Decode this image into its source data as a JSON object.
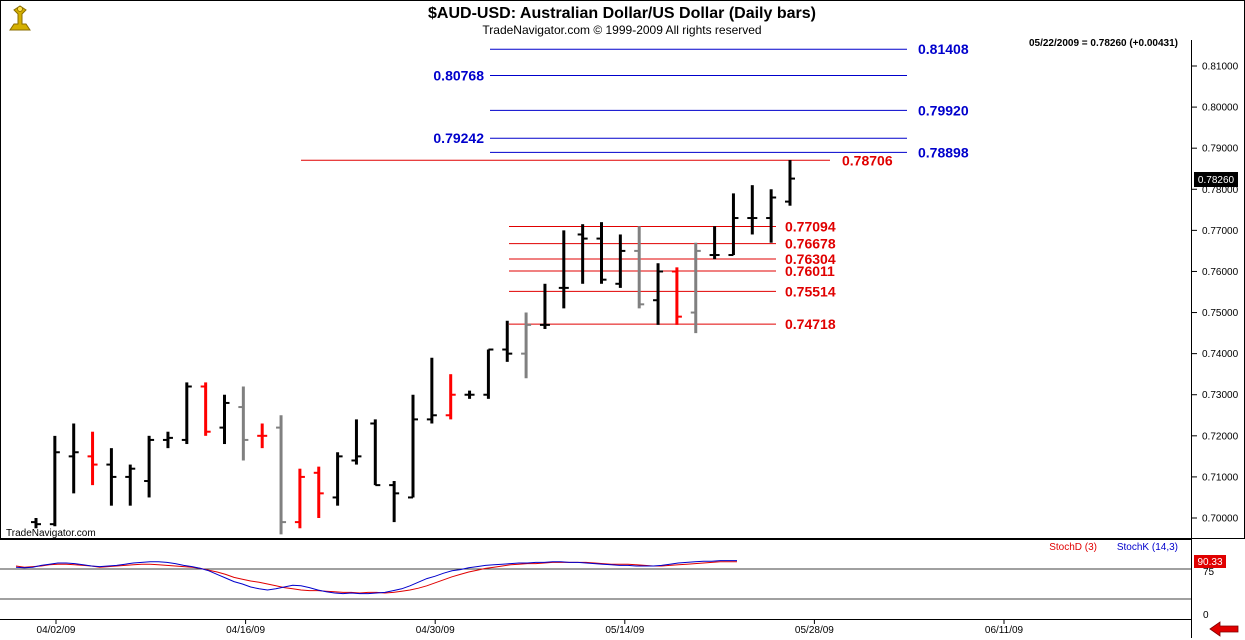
{
  "chart_data": {
    "type": "ohlc",
    "title": "$AUD-USD:  Australian Dollar/US Dollar  (Daily bars)",
    "subtitle": "TradeNavigator.com © 1999-2009 All rights reserved",
    "status_text": "05/22/2009 = 0.78260 (+0.00431)",
    "watermark": "TradeNavigator.com",
    "last_price_label": "0.78260",
    "ylim": [
      0.6955,
      0.8175
    ],
    "y_ticks": [
      "0.70000",
      "0.71000",
      "0.72000",
      "0.73000",
      "0.74000",
      "0.75000",
      "0.76000",
      "0.77000",
      "0.78000",
      "0.79000",
      "0.80000",
      "0.81000"
    ],
    "x_tick_labels": [
      "04/02/09",
      "04/16/09",
      "04/30/09",
      "05/14/09",
      "05/28/09",
      "06/11/09"
    ],
    "colors": {
      "up": "#000000",
      "down": "#ff0000",
      "neutral": "#808080",
      "blue_level": "#0000cc",
      "red_level": "#e00000"
    },
    "bars": [
      {
        "o": 0.699,
        "h": 0.7,
        "l": 0.6975,
        "c": 0.6985,
        "color": "up"
      },
      {
        "o": 0.6985,
        "h": 0.72,
        "l": 0.698,
        "c": 0.716,
        "color": "up"
      },
      {
        "o": 0.715,
        "h": 0.723,
        "l": 0.706,
        "c": 0.716,
        "color": "up"
      },
      {
        "o": 0.715,
        "h": 0.721,
        "l": 0.708,
        "c": 0.713,
        "color": "down"
      },
      {
        "o": 0.713,
        "h": 0.717,
        "l": 0.703,
        "c": 0.71,
        "color": "up"
      },
      {
        "o": 0.71,
        "h": 0.713,
        "l": 0.703,
        "c": 0.712,
        "color": "up"
      },
      {
        "o": 0.709,
        "h": 0.72,
        "l": 0.705,
        "c": 0.719,
        "color": "up"
      },
      {
        "o": 0.719,
        "h": 0.721,
        "l": 0.717,
        "c": 0.7195,
        "color": "up"
      },
      {
        "o": 0.719,
        "h": 0.733,
        "l": 0.718,
        "c": 0.732,
        "color": "up"
      },
      {
        "o": 0.732,
        "h": 0.733,
        "l": 0.72,
        "c": 0.721,
        "color": "down"
      },
      {
        "o": 0.722,
        "h": 0.73,
        "l": 0.718,
        "c": 0.728,
        "color": "up"
      },
      {
        "o": 0.727,
        "h": 0.732,
        "l": 0.714,
        "c": 0.719,
        "color": "neutral"
      },
      {
        "o": 0.72,
        "h": 0.723,
        "l": 0.717,
        "c": 0.72,
        "color": "down"
      },
      {
        "o": 0.722,
        "h": 0.725,
        "l": 0.696,
        "c": 0.699,
        "color": "neutral"
      },
      {
        "o": 0.699,
        "h": 0.712,
        "l": 0.6975,
        "c": 0.71,
        "color": "down"
      },
      {
        "o": 0.711,
        "h": 0.7125,
        "l": 0.7,
        "c": 0.706,
        "color": "down"
      },
      {
        "o": 0.705,
        "h": 0.716,
        "l": 0.703,
        "c": 0.715,
        "color": "up"
      },
      {
        "o": 0.714,
        "h": 0.724,
        "l": 0.713,
        "c": 0.715,
        "color": "up"
      },
      {
        "o": 0.723,
        "h": 0.724,
        "l": 0.708,
        "c": 0.708,
        "color": "up"
      },
      {
        "o": 0.708,
        "h": 0.709,
        "l": 0.699,
        "c": 0.706,
        "color": "up"
      },
      {
        "o": 0.705,
        "h": 0.73,
        "l": 0.705,
        "c": 0.724,
        "color": "up"
      },
      {
        "o": 0.724,
        "h": 0.739,
        "l": 0.723,
        "c": 0.725,
        "color": "up"
      },
      {
        "o": 0.725,
        "h": 0.735,
        "l": 0.724,
        "c": 0.73,
        "color": "down"
      },
      {
        "o": 0.73,
        "h": 0.731,
        "l": 0.729,
        "c": 0.73,
        "color": "up"
      },
      {
        "o": 0.73,
        "h": 0.741,
        "l": 0.729,
        "c": 0.741,
        "color": "up"
      },
      {
        "o": 0.741,
        "h": 0.748,
        "l": 0.738,
        "c": 0.74,
        "color": "up"
      },
      {
        "o": 0.74,
        "h": 0.75,
        "l": 0.734,
        "c": 0.747,
        "color": "neutral"
      },
      {
        "o": 0.747,
        "h": 0.757,
        "l": 0.746,
        "c": 0.747,
        "color": "up"
      },
      {
        "o": 0.756,
        "h": 0.77,
        "l": 0.751,
        "c": 0.756,
        "color": "up"
      },
      {
        "o": 0.769,
        "h": 0.7715,
        "l": 0.757,
        "c": 0.768,
        "color": "up"
      },
      {
        "o": 0.768,
        "h": 0.772,
        "l": 0.757,
        "c": 0.758,
        "color": "up"
      },
      {
        "o": 0.757,
        "h": 0.769,
        "l": 0.756,
        "c": 0.765,
        "color": "up"
      },
      {
        "o": 0.765,
        "h": 0.771,
        "l": 0.751,
        "c": 0.752,
        "color": "neutral"
      },
      {
        "o": 0.753,
        "h": 0.762,
        "l": 0.747,
        "c": 0.76,
        "color": "up"
      },
      {
        "o": 0.76,
        "h": 0.761,
        "l": 0.747,
        "c": 0.749,
        "color": "down"
      },
      {
        "o": 0.75,
        "h": 0.767,
        "l": 0.745,
        "c": 0.765,
        "color": "neutral"
      },
      {
        "o": 0.764,
        "h": 0.771,
        "l": 0.763,
        "c": 0.764,
        "color": "up"
      },
      {
        "o": 0.764,
        "h": 0.779,
        "l": 0.764,
        "c": 0.773,
        "color": "up"
      },
      {
        "o": 0.773,
        "h": 0.781,
        "l": 0.769,
        "c": 0.773,
        "color": "up"
      },
      {
        "o": 0.773,
        "h": 0.78,
        "l": 0.767,
        "c": 0.778,
        "color": "up"
      },
      {
        "o": 0.777,
        "h": 0.7871,
        "l": 0.776,
        "c": 0.7826,
        "color": "up"
      }
    ],
    "levels": [
      {
        "value": 0.81408,
        "label": "0.81408",
        "color": "blue_level",
        "label_side": "right"
      },
      {
        "value": 0.80768,
        "label": "0.80768",
        "color": "blue_level",
        "label_side": "left"
      },
      {
        "value": 0.7992,
        "label": "0.79920",
        "color": "blue_level",
        "label_side": "right"
      },
      {
        "value": 0.79242,
        "label": "0.79242",
        "color": "blue_level",
        "label_side": "left"
      },
      {
        "value": 0.78898,
        "label": "0.78898",
        "color": "blue_level",
        "label_side": "right"
      },
      {
        "value": 0.78706,
        "label": "0.78706",
        "color": "red_level",
        "label_side": "right"
      },
      {
        "value": 0.77094,
        "label": "0.77094",
        "color": "red_level",
        "label_side": "right"
      },
      {
        "value": 0.76678,
        "label": "0.76678",
        "color": "red_level",
        "label_side": "right"
      },
      {
        "value": 0.76304,
        "label": "0.76304",
        "color": "red_level",
        "label_side": "right"
      },
      {
        "value": 0.76011,
        "label": "0.76011",
        "color": "red_level",
        "label_side": "right"
      },
      {
        "value": 0.75514,
        "label": "0.75514",
        "color": "red_level",
        "label_side": "right"
      },
      {
        "value": 0.74718,
        "label": "0.74718",
        "color": "red_level",
        "label_side": "right"
      }
    ],
    "stochastic": {
      "legend_d": "StochD (3)",
      "legend_k": "StochK (14,3)",
      "value_label": "90.33",
      "tick_75": "75",
      "tick_0": "0",
      "d_values": [
        80,
        78,
        79,
        80,
        82,
        83,
        83,
        82,
        81,
        80,
        78,
        79,
        80,
        81,
        82,
        83,
        83,
        82,
        81,
        80,
        79,
        78,
        76,
        73,
        70,
        66,
        61,
        58,
        55,
        53,
        50,
        47,
        44,
        42,
        40,
        39,
        39,
        38,
        37,
        36,
        36,
        35,
        36,
        36,
        35,
        36,
        38,
        40,
        43,
        47,
        52,
        57,
        62,
        66,
        70,
        73,
        76,
        78,
        80,
        82,
        83,
        84,
        84,
        85,
        86,
        86,
        86,
        86,
        86,
        85,
        84,
        83,
        83,
        83,
        82,
        81,
        80,
        80,
        81,
        82,
        83,
        84,
        85,
        86,
        87,
        87,
        87
      ],
      "k_values": [
        78,
        77,
        78,
        81,
        83,
        85,
        85,
        84,
        82,
        80,
        79,
        80,
        81,
        83,
        85,
        86,
        87,
        87,
        86,
        84,
        81,
        79,
        76,
        72,
        66,
        60,
        54,
        50,
        45,
        42,
        40,
        42,
        45,
        48,
        47,
        44,
        40,
        37,
        35,
        34,
        35,
        34,
        34,
        35,
        36,
        39,
        42,
        47,
        53,
        59,
        63,
        68,
        72,
        74,
        77,
        79,
        81,
        82,
        83,
        84,
        85,
        85,
        86,
        86,
        87,
        87,
        86,
        86,
        85,
        84,
        83,
        82,
        81,
        81,
        80,
        80,
        80,
        81,
        83,
        85,
        86,
        87,
        88,
        88,
        89,
        89,
        89
      ]
    }
  }
}
